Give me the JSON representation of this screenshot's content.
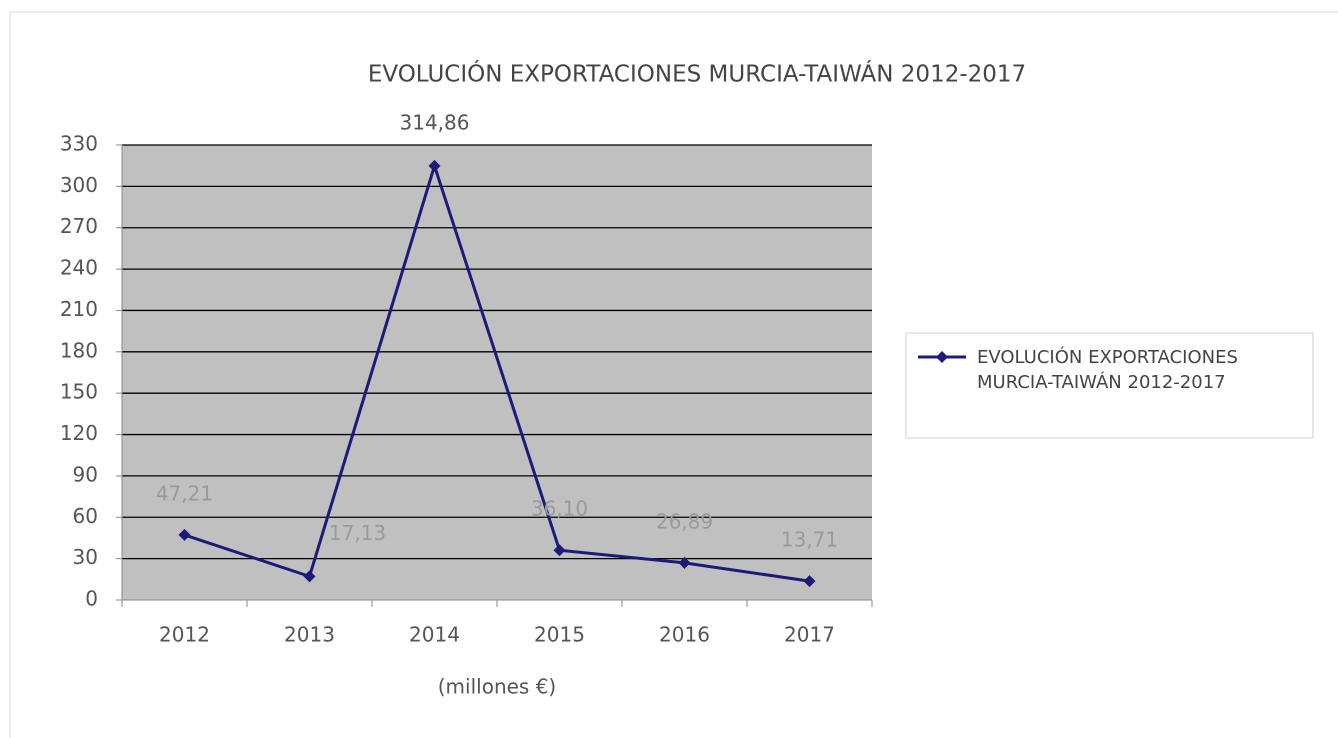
{
  "chart_data": {
    "type": "line",
    "title": "EVOLUCIÓN EXPORTACIONES MURCIA-TAIWÁN 2012-2017",
    "x_label": "(millones €)",
    "categories": [
      "2012",
      "2013",
      "2014",
      "2015",
      "2016",
      "2017"
    ],
    "series": [
      {
        "name": "EVOLUCIÓN EXPORTACIONES MURCIA-TAIWÁN 2012-2017",
        "color": "#1c1c78",
        "values": [
          47.21,
          17.13,
          314.86,
          36.1,
          26.89,
          13.71
        ],
        "value_labels": [
          "47,21",
          "17,13",
          "314,86",
          "36,10",
          "26,89",
          "13,71"
        ]
      }
    ],
    "ylim": [
      0,
      330
    ],
    "yticks": [
      0,
      30,
      60,
      90,
      120,
      150,
      180,
      210,
      240,
      270,
      300,
      330
    ],
    "grid": true,
    "legend": "right"
  }
}
